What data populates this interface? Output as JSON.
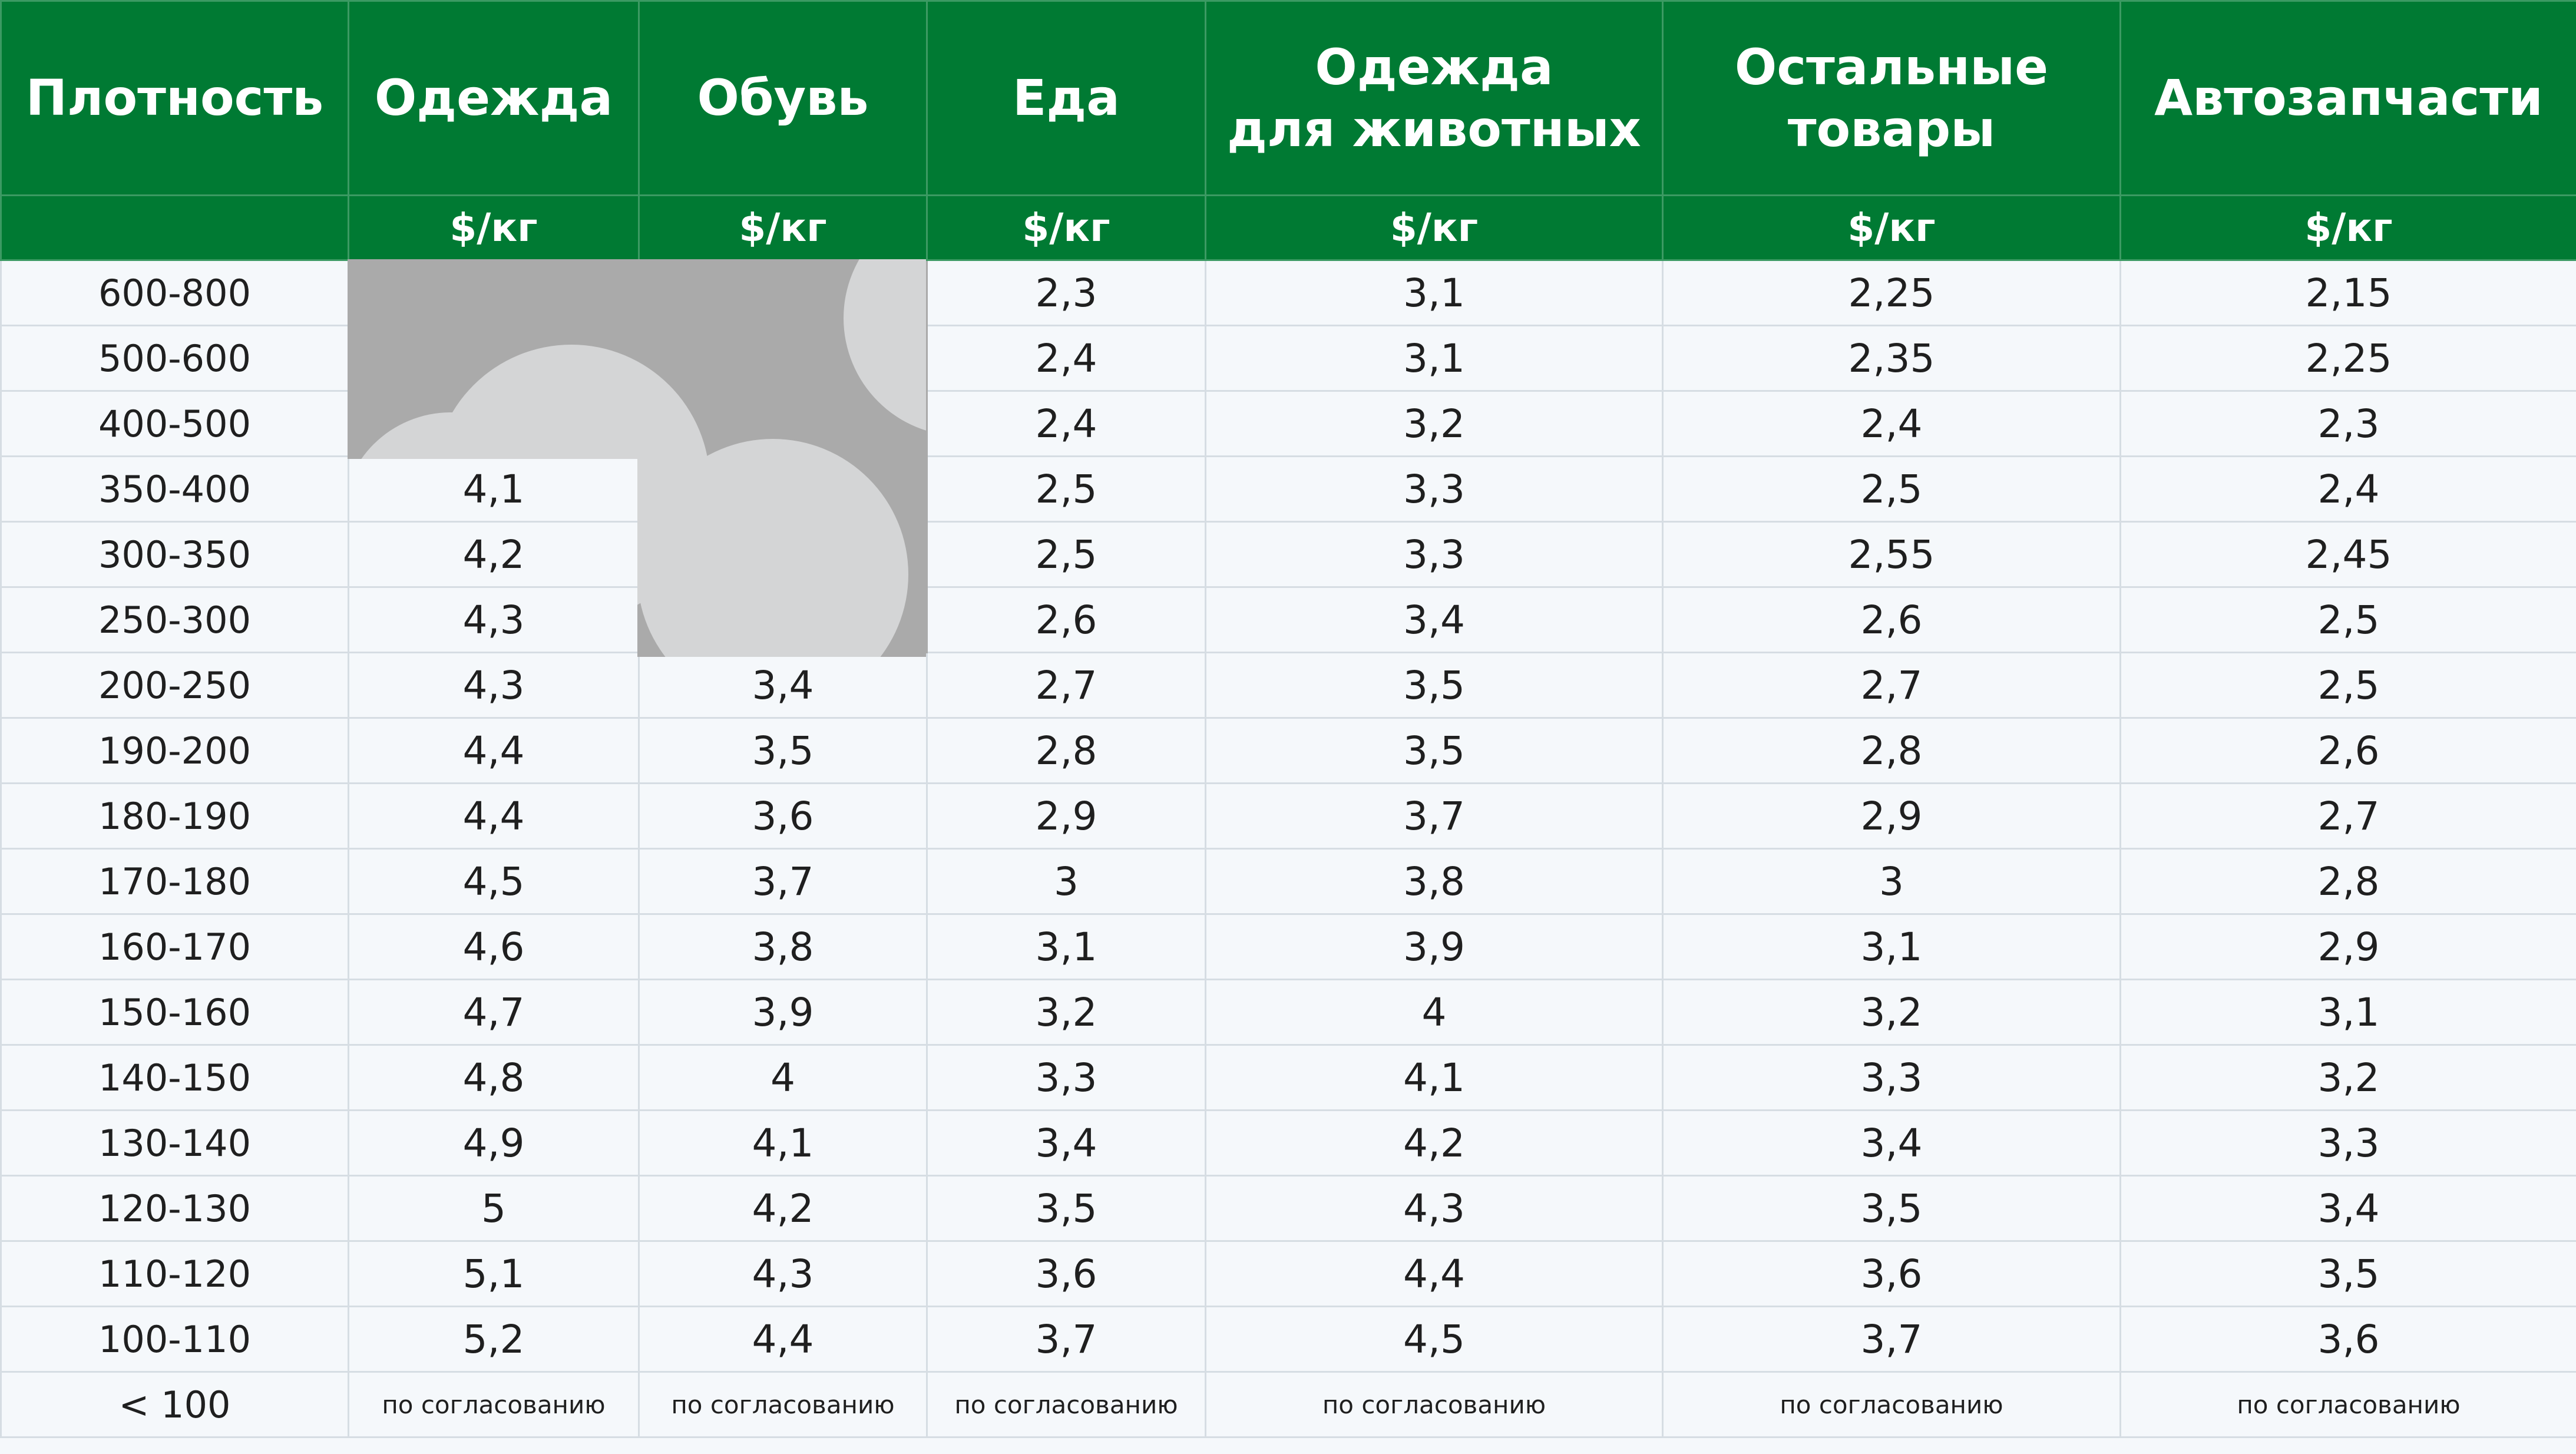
{
  "table": {
    "headers": [
      "Плотность",
      "Одежда",
      "Обувь",
      "Еда",
      "Одежда для животных",
      "Остальные товары",
      "Автозапчасти"
    ],
    "unit_row": [
      "",
      "$/кг",
      "$/кг",
      "$/кг",
      "$/кг",
      "$/кг",
      "$/кг"
    ],
    "rows": [
      [
        "600-800",
        "",
        "",
        "2,3",
        "3,1",
        "2,25",
        "2,15"
      ],
      [
        "500-600",
        "",
        "",
        "2,4",
        "3,1",
        "2,35",
        "2,25"
      ],
      [
        "400-500",
        "",
        "",
        "2,4",
        "3,2",
        "2,4",
        "2,3"
      ],
      [
        "350-400",
        "4,1",
        "",
        "2,5",
        "3,3",
        "2,5",
        "2,4"
      ],
      [
        "300-350",
        "4,2",
        "",
        "2,5",
        "3,3",
        "2,55",
        "2,45"
      ],
      [
        "250-300",
        "4,3",
        "",
        "2,6",
        "3,4",
        "2,6",
        "2,5"
      ],
      [
        "200-250",
        "4,3",
        "3,4",
        "2,7",
        "3,5",
        "2,7",
        "2,5"
      ],
      [
        "190-200",
        "4,4",
        "3,5",
        "2,8",
        "3,5",
        "2,8",
        "2,6"
      ],
      [
        "180-190",
        "4,4",
        "3,6",
        "2,9",
        "3,7",
        "2,9",
        "2,7"
      ],
      [
        "170-180",
        "4,5",
        "3,7",
        "3",
        "3,8",
        "3",
        "2,8"
      ],
      [
        "160-170",
        "4,6",
        "3,8",
        "3,1",
        "3,9",
        "3,1",
        "2,9"
      ],
      [
        "150-160",
        "4,7",
        "3,9",
        "3,2",
        "4",
        "3,2",
        "3,1"
      ],
      [
        "140-150",
        "4,8",
        "4",
        "3,3",
        "4,1",
        "3,3",
        "3,2"
      ],
      [
        "130-140",
        "4,9",
        "4,1",
        "3,4",
        "4,2",
        "3,4",
        "3,3"
      ],
      [
        "120-130",
        "5",
        "4,2",
        "3,5",
        "4,3",
        "3,5",
        "3,4"
      ],
      [
        "110-120",
        "5,1",
        "4,3",
        "3,6",
        "4,4",
        "3,6",
        "3,5"
      ],
      [
        "100-110",
        "5,2",
        "4,4",
        "3,7",
        "4,5",
        "3,7",
        "3,6"
      ],
      [
        "< 100",
        "по согласованию",
        "по согласованию",
        "по согласованию",
        "по согласованию",
        "по согласованию",
        "по согласованию"
      ]
    ]
  },
  "colors": {
    "header_bg": "#007a33",
    "header_text": "#ffffff",
    "body_bg": "#f5f8fb",
    "grid": "#d6dde3",
    "blank_dark": "#aaaaaa",
    "blank_light": "#d4d5d6"
  }
}
